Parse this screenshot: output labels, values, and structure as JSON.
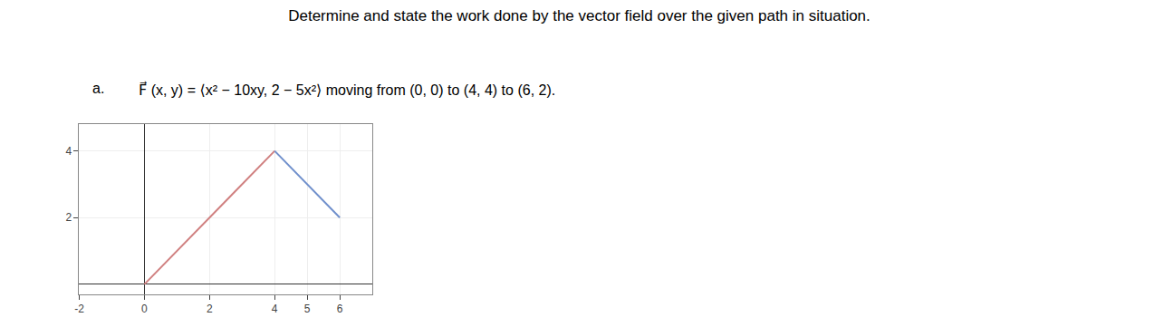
{
  "chart_data": {
    "type": "line",
    "title": "Determine and state the work done by the vector field over the given path in situation.",
    "annotations": [
      "a.",
      "F⃗ (x, y) = ⟨x² − 10xy, 2 − 5x²⟩ moving from (0, 0) to (4, 4) to (6, 2)."
    ],
    "series": [
      {
        "x": [
          0,
          4
        ],
        "values": [
          0,
          4
        ],
        "color": "#d08080"
      },
      {
        "x": [
          4,
          6
        ],
        "values": [
          4,
          2
        ],
        "color": "#7090cc"
      }
    ],
    "xlim": [
      -2,
      7
    ],
    "ylim": [
      -0.3,
      4.8
    ],
    "xticks": [
      -2,
      0,
      2,
      4,
      5,
      6
    ],
    "yticks": [
      2,
      4
    ],
    "grid": true
  }
}
